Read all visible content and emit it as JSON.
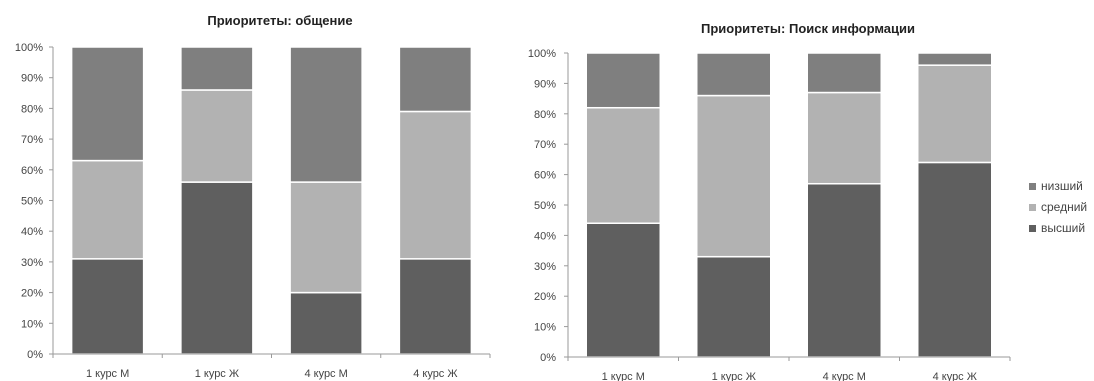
{
  "chart_data": [
    {
      "type": "bar",
      "stacked": true,
      "percent": true,
      "title": "Приоритеты: общение",
      "categories": [
        "1 курс М",
        "1 курс Ж",
        "4 курс М",
        "4 курс Ж"
      ],
      "series": [
        {
          "name": "высший",
          "values": [
            31,
            56,
            20,
            31
          ]
        },
        {
          "name": "средний",
          "values": [
            32,
            30,
            36,
            48
          ]
        },
        {
          "name": "низший",
          "values": [
            37,
            14,
            44,
            21
          ]
        }
      ],
      "yticks": [
        "0%",
        "10%",
        "20%",
        "30%",
        "40%",
        "50%",
        "60%",
        "70%",
        "80%",
        "90%",
        "100%"
      ],
      "ylim": [
        0,
        100
      ],
      "grid": false
    },
    {
      "type": "bar",
      "stacked": true,
      "percent": true,
      "title": "Приоритеты: Поиск информации",
      "categories": [
        "1 курс М",
        "1 курс Ж",
        "4 курс М",
        "4 курс Ж"
      ],
      "series": [
        {
          "name": "высший",
          "values": [
            44,
            33,
            57,
            64
          ]
        },
        {
          "name": "средний",
          "values": [
            38,
            53,
            30,
            32
          ]
        },
        {
          "name": "низший",
          "values": [
            18,
            14,
            13,
            4
          ]
        }
      ],
      "yticks": [
        "0%",
        "10%",
        "20%",
        "30%",
        "40%",
        "50%",
        "60%",
        "70%",
        "80%",
        "90%",
        "100%"
      ],
      "ylim": [
        0,
        100
      ],
      "grid": false
    }
  ],
  "legend": {
    "placement": "right",
    "items": [
      {
        "label": "низший",
        "color": "#7f7f7f"
      },
      {
        "label": "средний",
        "color": "#b2b2b2"
      },
      {
        "label": "высший",
        "color": "#5f5f5f"
      }
    ]
  },
  "colors": {
    "высший": "#5f5f5f",
    "средний": "#b2b2b2",
    "низший": "#7f7f7f"
  }
}
